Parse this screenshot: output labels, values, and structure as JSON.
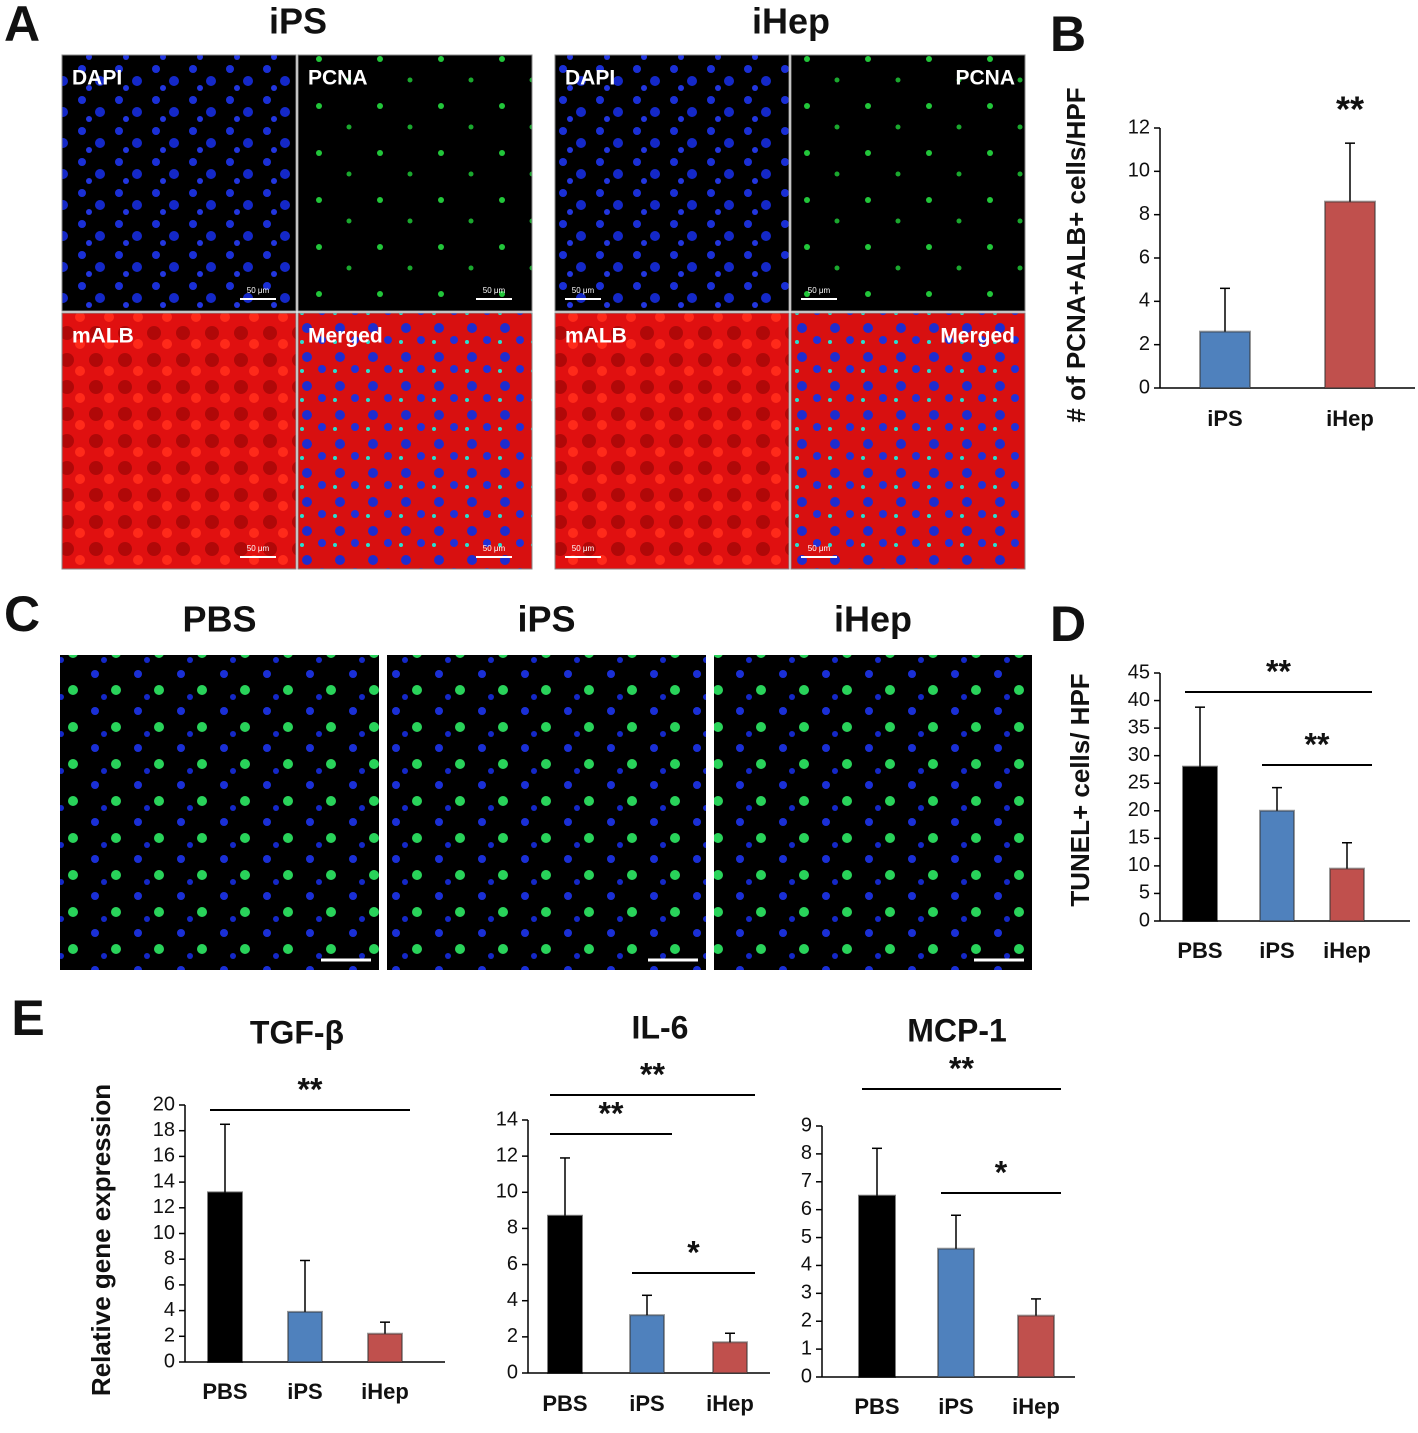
{
  "figure": {
    "panel_letters": [
      "A",
      "B",
      "C",
      "D",
      "E"
    ],
    "panel_a": {
      "groups": [
        "iPS",
        "iHep"
      ],
      "channels": [
        "DAPI",
        "PCNA",
        "mALB",
        "Merged"
      ],
      "scale_bar": "50 μm"
    },
    "panel_c": {
      "groups": [
        "PBS",
        "iPS",
        "iHep"
      ]
    }
  },
  "chart_data": [
    {
      "type": "bar",
      "y_label": "# of PCNA+ALB+ cells/HPF",
      "categories": [
        "iPS",
        "iHep"
      ],
      "values": [
        2.6,
        8.6
      ],
      "errors": [
        2.0,
        2.7
      ],
      "colors": [
        "#4f81bd",
        "#c0504d"
      ],
      "ylim": [
        0,
        12
      ],
      "yticks": [
        0,
        2,
        4,
        6,
        8,
        10,
        12
      ],
      "annotations": [
        {
          "text": "**",
          "from": 1,
          "to": 1
        }
      ]
    },
    {
      "type": "bar",
      "y_label": "TUNEL+ cells/ HPF",
      "categories": [
        "PBS",
        "iPS",
        "iHep"
      ],
      "values": [
        28,
        20,
        9.5
      ],
      "errors": [
        10.8,
        4.2,
        4.7
      ],
      "colors": [
        "#000000",
        "#4f81bd",
        "#c0504d"
      ],
      "ylim": [
        0,
        45
      ],
      "yticks": [
        0,
        5,
        10,
        15,
        20,
        25,
        30,
        35,
        40,
        45
      ],
      "annotations": [
        {
          "text": "**",
          "from": 0,
          "to": 2
        },
        {
          "text": "**",
          "from": 1,
          "to": 2
        }
      ]
    },
    {
      "type": "bar",
      "title": "TGF-β",
      "y_label": "Relative gene expression",
      "categories": [
        "PBS",
        "iPS",
        "iHep"
      ],
      "values": [
        13.2,
        3.9,
        2.2
      ],
      "errors": [
        5.3,
        4.0,
        0.9
      ],
      "colors": [
        "#000000",
        "#4f81bd",
        "#c0504d"
      ],
      "ylim": [
        0,
        20
      ],
      "yticks": [
        0,
        2,
        4,
        6,
        8,
        10,
        12,
        14,
        16,
        18,
        20
      ],
      "annotations": [
        {
          "text": "**",
          "from": 0,
          "to": 2
        }
      ]
    },
    {
      "type": "bar",
      "title": "IL-6",
      "categories": [
        "PBS",
        "iPS",
        "iHep"
      ],
      "values": [
        8.7,
        3.2,
        1.7
      ],
      "errors": [
        3.2,
        1.1,
        0.5
      ],
      "colors": [
        "#000000",
        "#4f81bd",
        "#c0504d"
      ],
      "ylim": [
        0,
        14
      ],
      "yticks": [
        0,
        2,
        4,
        6,
        8,
        10,
        12,
        14
      ],
      "annotations": [
        {
          "text": "**",
          "from": 0,
          "to": 1
        },
        {
          "text": "**",
          "from": 0,
          "to": 2
        },
        {
          "text": "*",
          "from": 1,
          "to": 2
        }
      ]
    },
    {
      "type": "bar",
      "title": "MCP-1",
      "categories": [
        "PBS",
        "iPS",
        "iHep"
      ],
      "values": [
        6.5,
        4.6,
        2.2
      ],
      "errors": [
        1.7,
        1.2,
        0.6
      ],
      "colors": [
        "#000000",
        "#4f81bd",
        "#c0504d"
      ],
      "ylim": [
        0,
        9
      ],
      "yticks": [
        0,
        1,
        2,
        3,
        4,
        5,
        6,
        7,
        8,
        9
      ],
      "annotations": [
        {
          "text": "**",
          "from": 0,
          "to": 2
        },
        {
          "text": "*",
          "from": 1,
          "to": 2
        }
      ]
    }
  ]
}
